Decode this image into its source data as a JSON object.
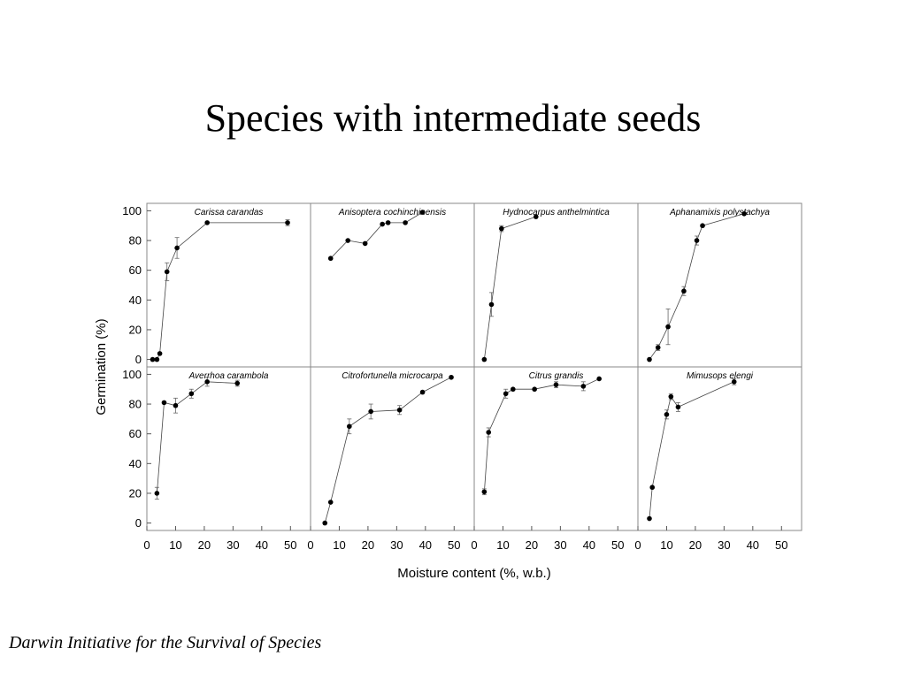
{
  "slide": {
    "title": "Species with intermediate seeds",
    "footer": "Darwin Initiative for the Survival of Species"
  },
  "chart_data": {
    "type": "scatter",
    "layout": "small-multiples 2x4",
    "xlabel": "Moisture content (%, w.b.)",
    "ylabel": "Germination (%)",
    "xlim": [
      0,
      57
    ],
    "ylim": [
      -5,
      105
    ],
    "xticks": [
      0,
      10,
      20,
      30,
      40,
      50
    ],
    "yticks": [
      0,
      20,
      40,
      60,
      80,
      100
    ],
    "grid": false,
    "panels": [
      {
        "title": "Carissa carandas",
        "x": [
          2,
          3.5,
          4.5,
          7,
          10.5,
          21,
          49
        ],
        "y": [
          0,
          0,
          4,
          59,
          75,
          92,
          92
        ],
        "err": [
          0,
          0,
          0,
          6,
          7,
          0,
          2
        ]
      },
      {
        "title": "Anisoptera cochinchinensis",
        "x": [
          7,
          13,
          19,
          25,
          27,
          33,
          39
        ],
        "y": [
          68,
          80,
          78,
          91,
          92,
          92,
          99
        ],
        "err": [
          0,
          0,
          0,
          0,
          0,
          0,
          0
        ]
      },
      {
        "title": "Hydnocarpus anthelmintica",
        "x": [
          3.5,
          6,
          9.5,
          21.5
        ],
        "y": [
          0,
          37,
          88,
          96
        ],
        "err": [
          0,
          8,
          2,
          0
        ]
      },
      {
        "title": "Aphanamixis polystachya",
        "x": [
          4,
          7,
          10.5,
          16,
          20.5,
          22.5,
          37
        ],
        "y": [
          0,
          8,
          22,
          46,
          80,
          90,
          98
        ],
        "err": [
          0,
          2,
          12,
          3,
          3,
          0,
          0
        ]
      },
      {
        "title": "Averrhoa carambola",
        "x": [
          3.5,
          6,
          10,
          15.5,
          21,
          31.5
        ],
        "y": [
          20,
          81,
          79,
          87,
          95,
          94
        ],
        "err": [
          4,
          0,
          5,
          3,
          3,
          2
        ]
      },
      {
        "title": "Citrofortunella microcarpa",
        "x": [
          5,
          7,
          13.5,
          21,
          31,
          39,
          49
        ],
        "y": [
          0,
          14,
          65,
          75,
          76,
          88,
          98
        ],
        "err": [
          0,
          0,
          5,
          5,
          3,
          0,
          0
        ]
      },
      {
        "title": "Citrus grandis",
        "x": [
          3.5,
          5,
          11,
          13.5,
          21,
          28.5,
          38,
          43.5
        ],
        "y": [
          21,
          61,
          87,
          90,
          90,
          93,
          92,
          97
        ],
        "err": [
          2,
          3,
          3,
          0,
          0,
          2,
          3,
          0
        ]
      },
      {
        "title": "Mimusops elengi",
        "x": [
          4,
          5,
          10,
          11.5,
          14,
          33.5
        ],
        "y": [
          3,
          24,
          73,
          85,
          78,
          95
        ],
        "err": [
          0,
          0,
          3,
          2,
          3,
          2
        ]
      }
    ]
  }
}
